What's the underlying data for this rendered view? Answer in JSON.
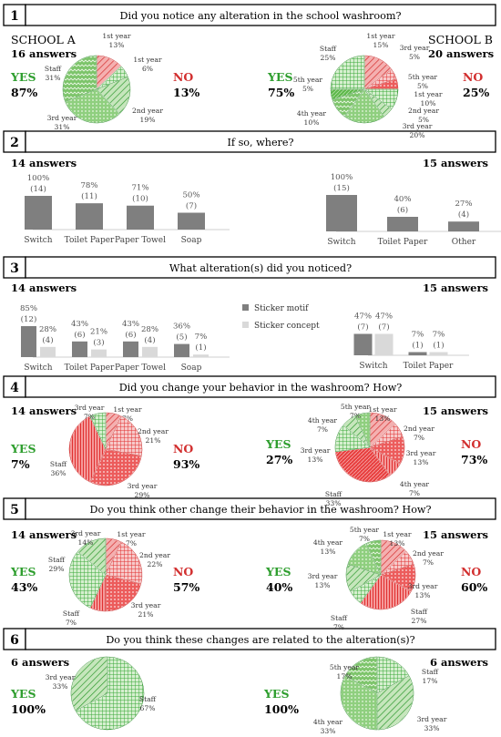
{
  "colors": {
    "green": "#3aa83a",
    "green_light": "#9fd08f",
    "red": "#e03030",
    "red_light": "#f29a9a",
    "bar_dark": "#7f7f7f",
    "bar_light": "#d9d9d9",
    "yes_text": "#2e9e2e",
    "no_text": "#d22f2f"
  },
  "school_a_label": "SCHOOL A",
  "school_b_label": "SCHOOL B",
  "sections": [
    {
      "num": "1",
      "question": "Did you notice any alteration in the school washroom?"
    },
    {
      "num": "2",
      "question": "If so, where?"
    },
    {
      "num": "3",
      "question": "What alteration(s) did you noticed?"
    },
    {
      "num": "4",
      "question": "Did you change your behavior in the washroom? How?"
    },
    {
      "num": "5",
      "question": "Do you think other change their behavior in the washroom? How?"
    },
    {
      "num": "6",
      "question": "Do you think these changes are related to the alteration(s)?"
    }
  ],
  "chart_data": [
    {
      "id": "q1a",
      "type": "pie",
      "answers": "16 answers",
      "yes_label": "YES",
      "yes_value": "87%",
      "no_label": "NO",
      "no_value": "13%",
      "slices": [
        {
          "label": "1st year",
          "pct": "13%",
          "value": 13,
          "group": "no"
        },
        {
          "label": "1st year",
          "pct": "6%",
          "value": 6,
          "group": "yes"
        },
        {
          "label": "2nd year",
          "pct": "19%",
          "value": 19,
          "group": "yes"
        },
        {
          "label": "3rd year",
          "pct": "31%",
          "value": 31,
          "group": "yes"
        },
        {
          "label": "Staff",
          "pct": "31%",
          "value": 31,
          "group": "yes"
        }
      ]
    },
    {
      "id": "q1b",
      "type": "pie",
      "answers": "20 answers",
      "yes_label": "YES",
      "yes_value": "75%",
      "no_label": "NO",
      "no_value": "25%",
      "slices": [
        {
          "label": "1st year",
          "pct": "15%",
          "value": 15,
          "group": "no"
        },
        {
          "label": "3rd year",
          "pct": "5%",
          "value": 5,
          "group": "no"
        },
        {
          "label": "5th year",
          "pct": "5%",
          "value": 5,
          "group": "no"
        },
        {
          "label": "1st year",
          "pct": "10%",
          "value": 10,
          "group": "yes"
        },
        {
          "label": "2nd year",
          "pct": "5%",
          "value": 5,
          "group": "yes"
        },
        {
          "label": "3rd year",
          "pct": "20%",
          "value": 20,
          "group": "yes"
        },
        {
          "label": "4th year",
          "pct": "10%",
          "value": 10,
          "group": "yes"
        },
        {
          "label": "5th year",
          "pct": "5%",
          "value": 5,
          "group": "yes"
        },
        {
          "label": "Staff",
          "pct": "25%",
          "value": 25,
          "group": "yes"
        }
      ]
    },
    {
      "id": "q2a",
      "type": "bar",
      "answers": "14 answers",
      "categories": [
        "Switch",
        "Toilet Paper",
        "Paper Towel",
        "Soap"
      ],
      "values": [
        100,
        78,
        71,
        50
      ],
      "pct_labels": [
        "100%",
        "78%",
        "71%",
        "50%"
      ],
      "count_labels": [
        "(14)",
        "(11)",
        "(10)",
        "(7)"
      ],
      "ylim": [
        0,
        100
      ]
    },
    {
      "id": "q2b",
      "type": "bar",
      "answers": "15 answers",
      "categories": [
        "Switch",
        "Toilet Paper",
        "Other"
      ],
      "values": [
        100,
        40,
        27
      ],
      "pct_labels": [
        "100%",
        "40%",
        "27%"
      ],
      "count_labels": [
        "(15)",
        "(6)",
        "(4)"
      ],
      "ylim": [
        0,
        100
      ]
    },
    {
      "id": "q3a",
      "type": "bar",
      "answers": "14 answers",
      "categories": [
        "Switch",
        "Toilet Paper",
        "Paper Towel",
        "Soap"
      ],
      "series": [
        {
          "name": "Sticker motif",
          "values": [
            85,
            43,
            43,
            36
          ],
          "pct_labels": [
            "85%",
            "43%",
            "43%",
            "36%"
          ],
          "count_labels": [
            "(12)",
            "(6)",
            "(6)",
            "(5)"
          ]
        },
        {
          "name": "Sticker concept",
          "values": [
            28,
            21,
            28,
            7
          ],
          "pct_labels": [
            "28%",
            "21%",
            "28%",
            "7%"
          ],
          "count_labels": [
            "(4)",
            "(3)",
            "(4)",
            "(1)"
          ]
        }
      ],
      "ylim": [
        0,
        100
      ]
    },
    {
      "id": "q3b",
      "type": "bar",
      "answers": "15 answers",
      "categories": [
        "Switch",
        "Toilet Paper"
      ],
      "series": [
        {
          "name": "Sticker motif",
          "values": [
            47,
            7
          ],
          "pct_labels": [
            "47%",
            "7%"
          ],
          "count_labels": [
            "(7)",
            "(1)"
          ]
        },
        {
          "name": "Sticker concept",
          "values": [
            47,
            7
          ],
          "pct_labels": [
            "47%",
            "7%"
          ],
          "count_labels": [
            "(7)",
            "(1)"
          ]
        }
      ],
      "ylim": [
        0,
        100
      ]
    },
    {
      "id": "q4a",
      "type": "pie",
      "answers": "14 answers",
      "yes_label": "YES",
      "yes_value": "7%",
      "no_label": "NO",
      "no_value": "93%",
      "slices": [
        {
          "label": "1st year",
          "pct": "7%",
          "value": 7,
          "group": "no"
        },
        {
          "label": "2nd year",
          "pct": "21%",
          "value": 21,
          "group": "no"
        },
        {
          "label": "3rd year",
          "pct": "29%",
          "value": 29,
          "group": "no"
        },
        {
          "label": "Staff",
          "pct": "36%",
          "value": 36,
          "group": "no"
        },
        {
          "label": "3rd year",
          "pct": "7%",
          "value": 7,
          "group": "yes"
        }
      ]
    },
    {
      "id": "q4b",
      "type": "pie",
      "answers": "15 answers",
      "yes_label": "YES",
      "yes_value": "27%",
      "no_label": "NO",
      "no_value": "73%",
      "slices": [
        {
          "label": "1st year",
          "pct": "13%",
          "value": 13,
          "group": "no"
        },
        {
          "label": "2nd year",
          "pct": "7%",
          "value": 7,
          "group": "no"
        },
        {
          "label": "3rd year",
          "pct": "13%",
          "value": 13,
          "group": "no"
        },
        {
          "label": "4th year",
          "pct": "7%",
          "value": 7,
          "group": "no"
        },
        {
          "label": "Staff",
          "pct": "33%",
          "value": 33,
          "group": "no"
        },
        {
          "label": "3rd year",
          "pct": "13%",
          "value": 13,
          "group": "yes"
        },
        {
          "label": "4th year",
          "pct": "7%",
          "value": 7,
          "group": "yes"
        },
        {
          "label": "5th year",
          "pct": "7%",
          "value": 7,
          "group": "yes"
        }
      ]
    },
    {
      "id": "q5a",
      "type": "pie",
      "answers": "14 answers",
      "yes_label": "YES",
      "yes_value": "43%",
      "no_label": "NO",
      "no_value": "57%",
      "slices": [
        {
          "label": "1st year",
          "pct": "7%",
          "value": 7,
          "group": "no"
        },
        {
          "label": "2nd year",
          "pct": "22%",
          "value": 22,
          "group": "no"
        },
        {
          "label": "3rd year",
          "pct": "21%",
          "value": 21,
          "group": "no"
        },
        {
          "label": "Staff",
          "pct": "7%",
          "value": 7,
          "group": "no"
        },
        {
          "label": "Staff",
          "pct": "29%",
          "value": 29,
          "group": "yes"
        },
        {
          "label": "3rd year",
          "pct": "14%",
          "value": 14,
          "group": "yes"
        }
      ]
    },
    {
      "id": "q5b",
      "type": "pie",
      "answers": "15 answers",
      "yes_label": "YES",
      "yes_value": "40%",
      "no_label": "NO",
      "no_value": "60%",
      "slices": [
        {
          "label": "1st year",
          "pct": "13%",
          "value": 13,
          "group": "no"
        },
        {
          "label": "2nd year",
          "pct": "7%",
          "value": 7,
          "group": "no"
        },
        {
          "label": "3rd year",
          "pct": "13%",
          "value": 13,
          "group": "no"
        },
        {
          "label": "Staff",
          "pct": "27%",
          "value": 27,
          "group": "no"
        },
        {
          "label": "Staff",
          "pct": "7%",
          "value": 7,
          "group": "yes"
        },
        {
          "label": "3rd year",
          "pct": "13%",
          "value": 13,
          "group": "yes"
        },
        {
          "label": "4th year",
          "pct": "13%",
          "value": 13,
          "group": "yes"
        },
        {
          "label": "5th year",
          "pct": "7%",
          "value": 7,
          "group": "yes"
        }
      ]
    },
    {
      "id": "q6a",
      "type": "pie",
      "answers": "6 answers",
      "yes_label": "YES",
      "yes_value": "100%",
      "slices": [
        {
          "label": "Staff",
          "pct": "67%",
          "value": 67,
          "group": "yes"
        },
        {
          "label": "3rd year",
          "pct": "33%",
          "value": 33,
          "group": "yes"
        }
      ]
    },
    {
      "id": "q6b",
      "type": "pie",
      "answers": "6 answers",
      "yes_label": "YES",
      "yes_value": "100%",
      "slices": [
        {
          "label": "Staff",
          "pct": "17%",
          "value": 17,
          "group": "yes"
        },
        {
          "label": "3rd year",
          "pct": "33%",
          "value": 33,
          "group": "yes"
        },
        {
          "label": "4th year",
          "pct": "33%",
          "value": 33,
          "group": "yes"
        },
        {
          "label": "5th year",
          "pct": "17%",
          "value": 17,
          "group": "yes"
        }
      ]
    }
  ]
}
